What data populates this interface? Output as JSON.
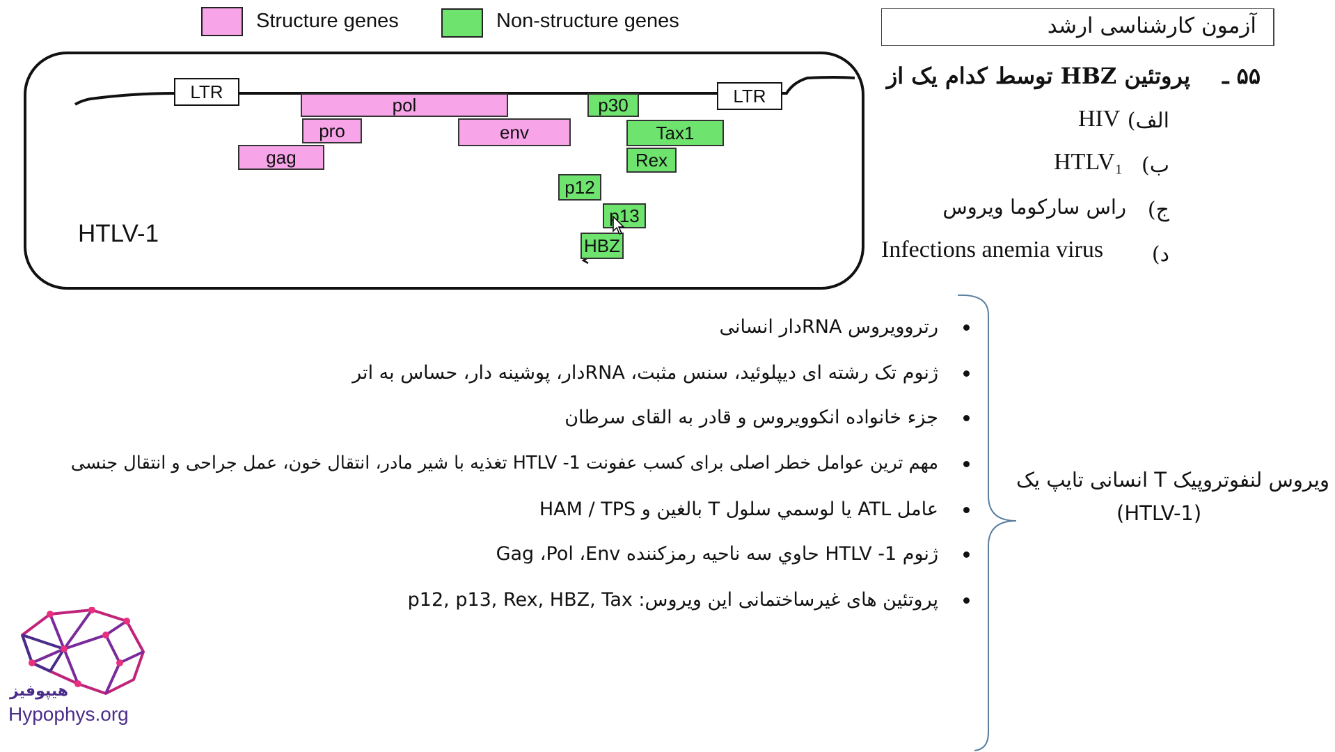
{
  "legend": {
    "structure_label": "Structure genes",
    "nonstructure_label": "Non-structure genes",
    "structure_color": "#f7a4e8",
    "nonstructure_color": "#6ee36e"
  },
  "diagram": {
    "virus_name": "HTLV-1",
    "ltr_left": "LTR",
    "ltr_right": "LTR",
    "structure_genes": [
      "pol",
      "pro",
      "gag",
      "env"
    ],
    "nonstructure_genes": [
      "p30",
      "Tax1",
      "Rex",
      "p12",
      "p13",
      "HBZ"
    ]
  },
  "header": {
    "exam_title": "آزمون کارشناسی ارشد"
  },
  "question": {
    "number": "۵۵ ـ",
    "text": "پروتئین HBZ توسط کدام یک از",
    "options": [
      {
        "label": "الف)",
        "value": "HIV"
      },
      {
        "label": "ب)",
        "value": "HTLV₁"
      },
      {
        "label": "ج)",
        "value": "راس سارکوما ویروس"
      },
      {
        "label": "د)",
        "value": "Infections anemia virus"
      }
    ]
  },
  "summary": {
    "line1": "ویروس لنفوتروپیک T انسانی تایپ یک",
    "line2": "(HTLV-1)"
  },
  "bullets": [
    "رتروویروس RNAدار انسانی",
    "ژنوم تک رشته ای دیپلوئید، سنس مثبت، RNAدار، پوشینه دار، حساس به اتر",
    "جزء خانواده انکوویروس و قادر به القای سرطان",
    "مهم ترین عوامل خطر اصلی برای کسب عفونت HTLV -1 تغذیه با شیر مادر، انتقال خون، عمل جراحی و انتقال جنسی",
    "عامل ATL یا لوسمي سلول T بالغين و HAM / TPS",
    "ژنوم HTLV -1 حاوي سه ناحیه رمزکننده Gag ،Pol ،Env",
    "پروتئین های غیرساختمانی این ویروس: p12, p13, Rex, HBZ, Tax"
  ],
  "logo": {
    "name_fa": "هیپوفیز",
    "name_en": "Hypophys.org"
  }
}
